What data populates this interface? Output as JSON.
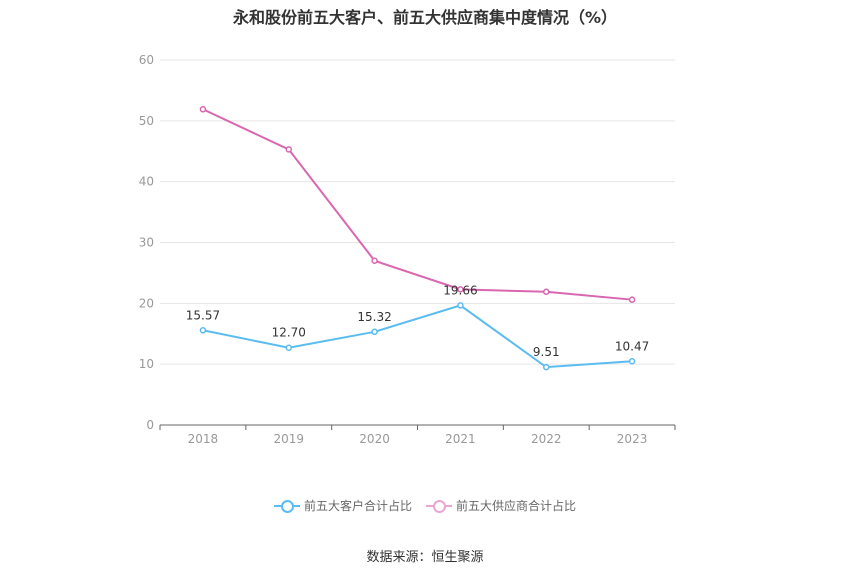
{
  "title": "永和股份前五大客户、前五大供应商集中度情况（%）",
  "source": "数据来源：恒生聚源",
  "chart_data": {
    "type": "line",
    "categories": [
      "2018",
      "2019",
      "2020",
      "2021",
      "2022",
      "2023"
    ],
    "ylim": [
      0,
      60
    ],
    "yticks": [
      "0",
      "10",
      "20",
      "30",
      "40",
      "50",
      "60"
    ],
    "grid": true,
    "legend_position": "bottom",
    "series": [
      {
        "name": "前五大客户合计占比",
        "color": "#5bbcf0",
        "values": [
          15.57,
          12.7,
          15.32,
          19.66,
          9.51,
          10.47
        ],
        "labels": [
          "15.57",
          "12.70",
          "15.32",
          "19.66",
          "9.51",
          "10.47"
        ]
      },
      {
        "name": "前五大供应商合计占比",
        "color": "#d966b0",
        "values": [
          51.9,
          45.3,
          27.0,
          22.3,
          21.9,
          20.6
        ]
      }
    ]
  }
}
